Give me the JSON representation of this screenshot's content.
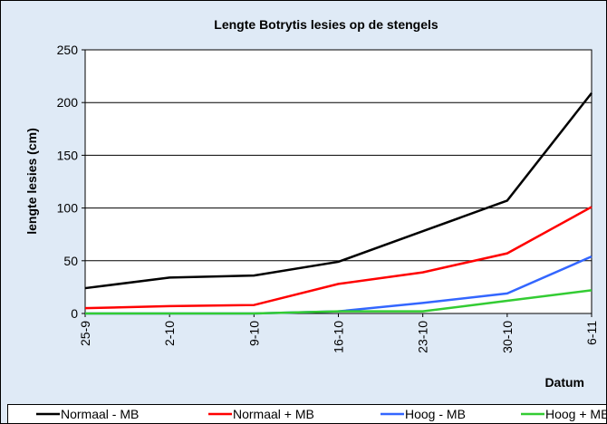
{
  "chart_data": {
    "type": "line",
    "title": "Lengte Botrytis lesies op de stengels",
    "y_label": "lengte lesies (cm)",
    "x_label": "Datum",
    "categories": [
      "25-9",
      "2-10",
      "9-10",
      "16-10",
      "23-10",
      "30-10",
      "6-11"
    ],
    "series": [
      {
        "name": "Normaal - MB",
        "color": "#000000",
        "values": [
          24,
          34,
          36,
          49,
          78,
          107,
          209
        ]
      },
      {
        "name": "Normaal + MB",
        "color": "#ff0000",
        "values": [
          5,
          7,
          8,
          28,
          39,
          57,
          101
        ]
      },
      {
        "name": "Hoog - MB",
        "color": "#3366ff",
        "values": [
          0,
          0,
          0,
          2,
          10,
          19,
          54
        ]
      },
      {
        "name": "Hoog + MB",
        "color": "#33cc33",
        "values": [
          0,
          0,
          0,
          2,
          2,
          12,
          22
        ]
      }
    ],
    "ylim": [
      0,
      250
    ],
    "yticks": [
      0,
      50,
      100,
      150,
      200,
      250
    ],
    "grid": true
  }
}
